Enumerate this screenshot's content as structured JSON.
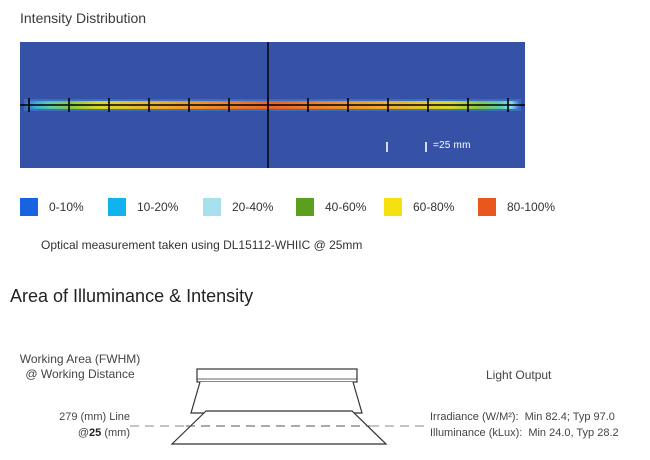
{
  "intensity": {
    "title": "Intensity Distribution",
    "scale_text": "=25 mm",
    "legend": [
      {
        "label": "0-10%",
        "color": "#1a63e0"
      },
      {
        "label": "10-20%",
        "color": "#11b3ee"
      },
      {
        "label": "20-40%",
        "color": "#a8e0ee"
      },
      {
        "label": "40-60%",
        "color": "#5b9f1f"
      },
      {
        "label": "60-80%",
        "color": "#f6e012"
      },
      {
        "label": "80-100%",
        "color": "#e9561d"
      }
    ],
    "note": "Optical measurement taken using DL15112-WHIIC @ 25mm"
  },
  "area": {
    "title": "Area of Illuminance & Intensity",
    "working_area_line1": "Working Area (FWHM)",
    "working_area_line2": "@ Working Distance",
    "line_label_prefix": "279 (mm) Line",
    "line_label_at": "@",
    "line_label_distance": "25",
    "line_label_unit": "(mm)",
    "light_output_label": "Light Output",
    "irradiance_label": "Irradiance (W/M²):",
    "irradiance_value": "Min 82.4; Typ 97.0",
    "illuminance_label": "Illuminance (kLux):",
    "illuminance_value": "Min 24.0, Typ 28.2"
  }
}
